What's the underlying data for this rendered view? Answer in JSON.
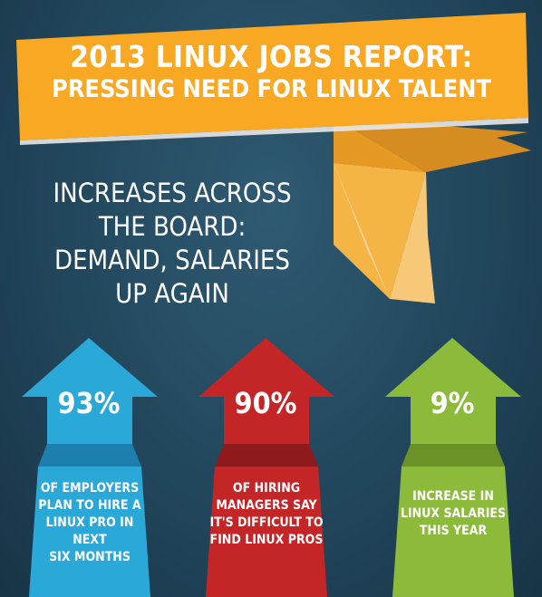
{
  "header": {
    "title_line1": "2013 LINUX JOBS REPORT:",
    "title_line2": "PRESSING NEED FOR LINUX TALENT"
  },
  "subtitle": {
    "lines": [
      "INCREASES ACROSS",
      "THE BOARD:",
      "DEMAND, SALARIES",
      "UP AGAIN"
    ]
  },
  "stats": [
    {
      "value": "93%",
      "caption": [
        "OF EMPLOYERS",
        "PLAN TO HIRE A",
        "LINUX PRO IN NEXT",
        "SIX MONTHS"
      ],
      "color": "#2aa8d8",
      "dark": "#1d7fae"
    },
    {
      "value": "90%",
      "caption": [
        "OF HIRING",
        "MANAGERS SAY",
        "IT'S DIFFICULT TO",
        "FIND LINUX PROS"
      ],
      "color": "#c42628",
      "dark": "#8e1a1c"
    },
    {
      "value": "9%",
      "caption": [
        "INCREASE IN",
        "LINUX SALARIES",
        "THIS YEAR"
      ],
      "color": "#8cbb3c",
      "dark": "#6a9227"
    }
  ],
  "colors": {
    "banner": "#f8a823",
    "banner_dark": "#c9791a",
    "background": "#244a60"
  }
}
